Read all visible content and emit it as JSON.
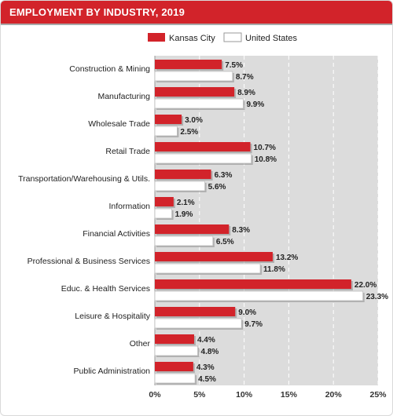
{
  "header": {
    "title": "EMPLOYMENT BY INDUSTRY, 2019"
  },
  "colors": {
    "accent": "#d2232a",
    "plot_bg": "#dcdcdc",
    "us_fill": "#ffffff"
  },
  "chart_data": {
    "type": "bar",
    "orientation": "horizontal",
    "title": "EMPLOYMENT BY INDUSTRY, 2019",
    "xlabel": "",
    "ylabel": "",
    "xlim": [
      0,
      25
    ],
    "x_ticks": [
      "0%",
      "5%",
      "10%",
      "15%",
      "20%",
      "25%"
    ],
    "grid": true,
    "legend_position": "top-right",
    "categories": [
      "Construction & Mining",
      "Manufacturing",
      "Wholesale Trade",
      "Retail Trade",
      "Transportation/Warehousing & Utils.",
      "Information",
      "Financial Activities",
      "Professional & Business Services",
      "Educ. & Health Services",
      "Leisure & Hospitality",
      "Other",
      "Public Administration"
    ],
    "series": [
      {
        "name": "Kansas City",
        "color": "#d2232a",
        "values": [
          7.5,
          8.9,
          3.0,
          10.7,
          6.3,
          2.1,
          8.3,
          13.2,
          22.0,
          9.0,
          4.4,
          4.3
        ],
        "labels": [
          "7.5%",
          "8.9%",
          "3.0%",
          "10.7%",
          "6.3%",
          "2.1%",
          "8.3%",
          "13.2%",
          "22.0%",
          "9.0%",
          "4.4%",
          "4.3%"
        ]
      },
      {
        "name": "United States",
        "color": "#ffffff",
        "values": [
          8.7,
          9.9,
          2.5,
          10.8,
          5.6,
          1.9,
          6.5,
          11.8,
          23.3,
          9.7,
          4.8,
          4.5
        ],
        "labels": [
          "8.7%",
          "9.9%",
          "2.5%",
          "10.8%",
          "5.6%",
          "1.9%",
          "6.5%",
          "11.8%",
          "23.3%",
          "9.7%",
          "4.8%",
          "4.5%"
        ]
      }
    ]
  }
}
